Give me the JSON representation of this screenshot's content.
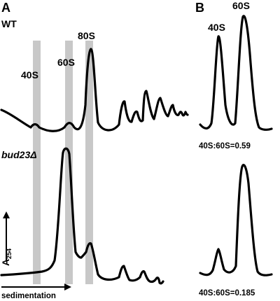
{
  "panels": {
    "a": {
      "letter": "A",
      "wt_label": "WT",
      "mutant_label": "bud23Δ",
      "peaks": {
        "p40": "40S",
        "p60": "60S",
        "p80": "80S"
      },
      "axis": {
        "label": "A",
        "subscript": "254",
        "x_label": "sedimentation"
      }
    },
    "b": {
      "letter": "B",
      "peaks": {
        "p40": "40S",
        "p60": "60S"
      },
      "ratio_wt": "40S:60S=0.59",
      "ratio_mut": "40S:60S=0.185"
    }
  },
  "colors": {
    "trace": "#000000",
    "band": "#c8c8c8",
    "background": "#ffffff"
  }
}
